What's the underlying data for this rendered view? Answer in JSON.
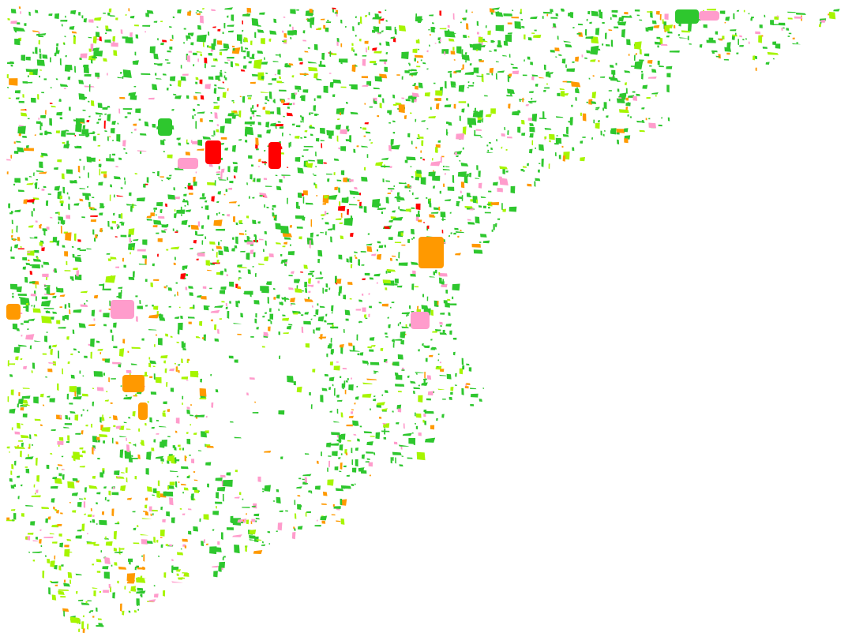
{
  "map": {
    "background": "#ffffff",
    "land_cover_colors": {
      "green": "#2ec72e",
      "lime": "#a6f500",
      "orange": "#ff9900",
      "pink": "#ff9ccc",
      "red": "#ff0000"
    }
  }
}
